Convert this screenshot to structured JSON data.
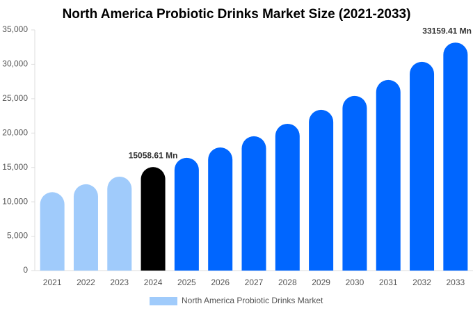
{
  "chart_data": {
    "type": "bar",
    "title": "North America Probiotic Drinks Market Size (2021-2033)",
    "categories": [
      "2021",
      "2022",
      "2023",
      "2024",
      "2025",
      "2026",
      "2027",
      "2028",
      "2029",
      "2030",
      "2031",
      "2032",
      "2033"
    ],
    "series": [
      {
        "name": "North America Probiotic Drinks Market",
        "color": "#a0cbfb",
        "colors": [
          "#a0cbfb",
          "#a0cbfb",
          "#a0cbfb",
          "#000000",
          "#0066ff",
          "#0066ff",
          "#0066ff",
          "#0066ff",
          "#0066ff",
          "#0066ff",
          "#0066ff",
          "#0066ff",
          "#0066ff"
        ],
        "values": [
          11400,
          12550,
          13660,
          15058.61,
          16400,
          17900,
          19530,
          21350,
          23380,
          25400,
          27730,
          30360,
          33159.41
        ],
        "value_labels": [
          null,
          null,
          null,
          "15058.61 Mn",
          null,
          null,
          null,
          null,
          null,
          null,
          null,
          null,
          "33159.41 Mn"
        ]
      }
    ],
    "ylim": [
      0,
      35000
    ],
    "yticks": [
      0,
      {
        "value": 5000,
        "label": "5,000"
      },
      {
        "value": 10000,
        "label": "10,000"
      },
      {
        "value": 15000,
        "label": "15,000"
      },
      {
        "value": 20000,
        "label": "20,000"
      },
      {
        "value": 25000,
        "label": "25,000"
      },
      {
        "value": 30000,
        "label": "30,000"
      },
      {
        "value": 35000,
        "label": "35,000"
      }
    ],
    "grid": false,
    "legend": "bottom"
  }
}
